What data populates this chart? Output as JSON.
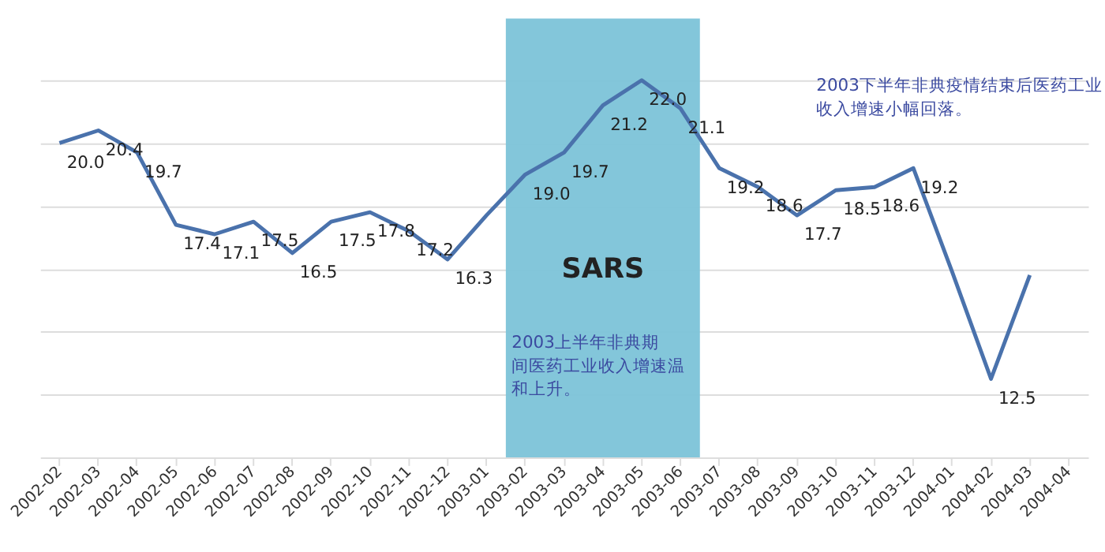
{
  "chart_data": {
    "type": "line",
    "categories": [
      "2002-02",
      "2002-03",
      "2002-04",
      "2002-05",
      "2002-06",
      "2002-07",
      "2002-08",
      "2002-09",
      "2002-10",
      "2002-11",
      "2002-12",
      "2003-01",
      "2003-02",
      "2003-03",
      "2003-04",
      "2003-05",
      "2003-06",
      "2003-07",
      "2003-08",
      "2003-09",
      "2003-10",
      "2003-11",
      "2003-12",
      "2004-01",
      "2004-02",
      "2004-03",
      "2004-04"
    ],
    "series": [
      {
        "color": "#4a72ac",
        "values": [
          20.0,
          20.4,
          19.7,
          17.4,
          17.1,
          17.5,
          16.5,
          17.5,
          17.8,
          17.2,
          16.3,
          17.7,
          19.0,
          19.7,
          21.2,
          22.0,
          21.1,
          19.2,
          18.6,
          17.7,
          18.5,
          18.6,
          19.2,
          15.9,
          12.5,
          15.8,
          null
        ],
        "value_labels": [
          "20.0",
          "20.4",
          "19.7",
          "17.4",
          "17.1",
          "17.5",
          "16.5",
          "17.5",
          "17.8",
          "17.2",
          "16.3",
          null,
          "19.0",
          "19.7",
          "21.2",
          "22.0",
          "21.1",
          "19.2",
          "18.6",
          "17.7",
          "18.5",
          "18.6",
          "19.2",
          null,
          "12.5",
          null,
          null
        ]
      }
    ],
    "yticks": [
      {
        "value": 10,
        "label": null
      },
      {
        "value": 12,
        "label": null
      },
      {
        "value": 14,
        "label": null
      },
      {
        "value": 16,
        "label": null
      },
      {
        "value": 18,
        "label": null
      },
      {
        "value": 20,
        "label": null
      },
      {
        "value": 22,
        "label": null
      }
    ],
    "grid": "y",
    "tick_labels": "x",
    "marker": "none",
    "line_style": "solid",
    "bands": [
      {
        "axis": "x",
        "from": "2003-02",
        "to": "2003-06",
        "label": "SARS",
        "color": "#7cc3d8"
      }
    ],
    "annotations": [
      "2003上半年非典期间医药工业收入增速温和上升。",
      "2003下半年非典疫情结束后医药工业收入增速小幅回落。"
    ]
  }
}
